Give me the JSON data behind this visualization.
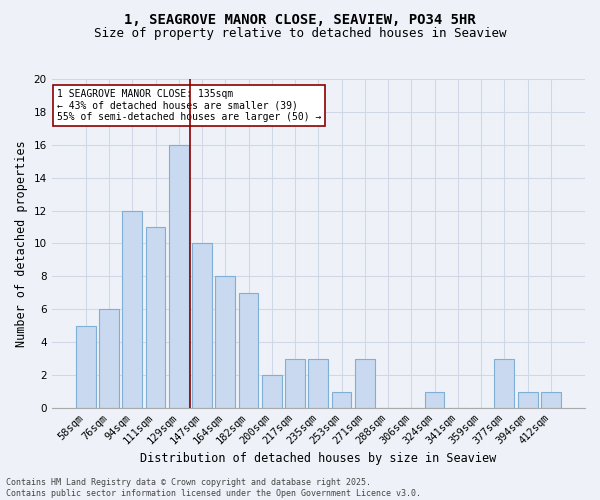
{
  "title1": "1, SEAGROVE MANOR CLOSE, SEAVIEW, PO34 5HR",
  "title2": "Size of property relative to detached houses in Seaview",
  "xlabel": "Distribution of detached houses by size in Seaview",
  "ylabel": "Number of detached properties",
  "bar_labels": [
    "58sqm",
    "76sqm",
    "94sqm",
    "111sqm",
    "129sqm",
    "147sqm",
    "164sqm",
    "182sqm",
    "200sqm",
    "217sqm",
    "235sqm",
    "253sqm",
    "271sqm",
    "288sqm",
    "306sqm",
    "324sqm",
    "341sqm",
    "359sqm",
    "377sqm",
    "394sqm",
    "412sqm"
  ],
  "bar_values": [
    5,
    6,
    12,
    11,
    16,
    10,
    8,
    7,
    2,
    3,
    3,
    1,
    3,
    0,
    0,
    1,
    0,
    0,
    3,
    1,
    1
  ],
  "bar_color": "#c9d9ef",
  "bar_edge_color": "#7fafd4",
  "grid_color": "#d0d8e8",
  "background_color": "#eef2f8",
  "vline_x": 4.5,
  "vline_color": "#8b0000",
  "annotation_text": "1 SEAGROVE MANOR CLOSE: 135sqm\n← 43% of detached houses are smaller (39)\n55% of semi-detached houses are larger (50) →",
  "annotation_box_color": "white",
  "annotation_box_edge": "#8b0000",
  "ylim": [
    0,
    20
  ],
  "yticks": [
    0,
    2,
    4,
    6,
    8,
    10,
    12,
    14,
    16,
    18,
    20
  ],
  "footnote": "Contains HM Land Registry data © Crown copyright and database right 2025.\nContains public sector information licensed under the Open Government Licence v3.0.",
  "title_fontsize": 10,
  "subtitle_fontsize": 9,
  "tick_fontsize": 7.5,
  "label_fontsize": 8.5,
  "footnote_fontsize": 6.0
}
